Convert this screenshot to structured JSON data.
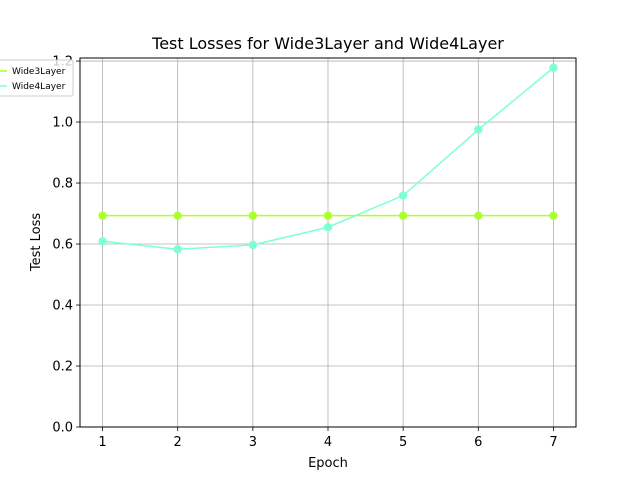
{
  "chart_data": {
    "type": "line",
    "title": "Test Losses for Wide3Layer and Wide4Layer",
    "xlabel": "Epoch",
    "ylabel": "Test Loss",
    "x": [
      1,
      2,
      3,
      4,
      5,
      6,
      7
    ],
    "xticks": [
      "1",
      "2",
      "3",
      "4",
      "5",
      "6",
      "7"
    ],
    "yticks": [
      "0.0",
      "0.2",
      "0.4",
      "0.6",
      "0.8",
      "1.0",
      "1.2"
    ],
    "xlim": [
      0.7,
      7.3
    ],
    "ylim": [
      0.0,
      1.21
    ],
    "grid": true,
    "legend_position": "upper left",
    "series": [
      {
        "name": "Wide3Layer",
        "color": "#adff2f",
        "values": [
          0.693,
          0.693,
          0.693,
          0.693,
          0.693,
          0.693,
          0.693
        ]
      },
      {
        "name": "Wide4Layer",
        "color": "#7fffd4",
        "values": [
          0.609,
          0.583,
          0.597,
          0.655,
          0.759,
          0.975,
          1.178
        ]
      }
    ]
  }
}
